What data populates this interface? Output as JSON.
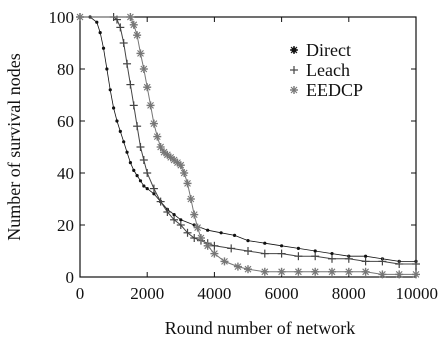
{
  "chart_data": {
    "type": "line",
    "title": "",
    "xlabel": "Round number of network",
    "ylabel": "Number of survival nodes",
    "xlim": [
      0,
      10000
    ],
    "ylim": [
      0,
      100
    ],
    "xticks": [
      0,
      2000,
      4000,
      6000,
      8000,
      10000
    ],
    "yticks": [
      0,
      20,
      40,
      60,
      80,
      100
    ],
    "legend_position": "top-right",
    "grid": false,
    "series": [
      {
        "name": "Direct",
        "marker": "dot",
        "color": "#111111",
        "x": [
          0,
          300,
          500,
          600,
          700,
          800,
          900,
          1000,
          1100,
          1200,
          1300,
          1400,
          1500,
          1600,
          1700,
          1800,
          1900,
          2000,
          2200,
          2400,
          2600,
          2800,
          3000,
          3400,
          3800,
          4200,
          4600,
          5000,
          5500,
          6000,
          6500,
          7000,
          7500,
          8000,
          8500,
          9000,
          9500,
          10000
        ],
        "y": [
          100,
          100,
          98,
          94,
          88,
          80,
          72,
          65,
          60,
          56,
          52,
          48,
          44,
          41,
          39,
          37,
          35,
          34,
          32,
          29,
          26,
          24,
          22,
          20,
          18,
          17,
          16,
          14,
          13,
          12,
          11,
          10,
          9,
          8,
          8,
          7,
          6,
          6
        ]
      },
      {
        "name": "Leach",
        "marker": "plus",
        "color": "#444444",
        "x": [
          0,
          1000,
          1100,
          1200,
          1300,
          1400,
          1500,
          1600,
          1700,
          1800,
          1900,
          2000,
          2200,
          2400,
          2600,
          2800,
          3000,
          3200,
          3400,
          3600,
          3800,
          4000,
          4500,
          5000,
          5500,
          6000,
          6500,
          7000,
          7500,
          8000,
          8500,
          9000,
          9500,
          10000
        ],
        "y": [
          100,
          100,
          99,
          96,
          90,
          82,
          74,
          66,
          58,
          50,
          45,
          40,
          34,
          29,
          25,
          22,
          20,
          17,
          15,
          14,
          13,
          12,
          11,
          10,
          9,
          9,
          8,
          8,
          7,
          7,
          6,
          6,
          5,
          5
        ]
      },
      {
        "name": "EEDCP",
        "marker": "star",
        "color": "#777777",
        "x": [
          0,
          1500,
          1600,
          1700,
          1800,
          1900,
          2000,
          2100,
          2200,
          2300,
          2400,
          2500,
          2600,
          2700,
          2800,
          2900,
          3000,
          3100,
          3200,
          3300,
          3400,
          3500,
          3600,
          3800,
          4000,
          4300,
          4700,
          5000,
          5500,
          6000,
          6500,
          7000,
          7500,
          8000,
          8500,
          9000,
          9500,
          10000
        ],
        "y": [
          100,
          100,
          97,
          93,
          86,
          80,
          73,
          66,
          59,
          54,
          50,
          48,
          47,
          46,
          45,
          44,
          43,
          40,
          36,
          30,
          24,
          19,
          15,
          12,
          9,
          6,
          4,
          3,
          2,
          2,
          2,
          2,
          2,
          2,
          2,
          1,
          1,
          1
        ]
      }
    ]
  }
}
